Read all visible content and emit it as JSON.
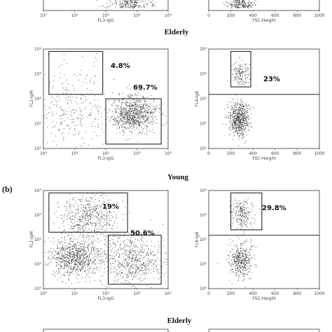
{
  "panel_letter": "(b)",
  "group_labels": {
    "elderly_a": "Elderly",
    "young_b": "Young",
    "elderly_b": "Elderly"
  },
  "axes": {
    "x_igg": "FL3-IgG",
    "y_igm": "FL2-IgM",
    "x_fsc": "FSC-Height",
    "y_iga": "FL4-IgA",
    "log_ticks": [
      "10⁰",
      "10¹",
      "10²",
      "10³",
      "10⁴"
    ],
    "lin_ticks": [
      "0",
      "200",
      "400",
      "600",
      "800",
      "1000"
    ]
  },
  "chart_data": [
    {
      "id": "top-left-partial",
      "type": "scatter",
      "xlabel": "FL3-IgG",
      "xscale": "log",
      "xlim": [
        1,
        10000
      ],
      "gates": []
    },
    {
      "id": "top-right-partial",
      "type": "scatter",
      "xlabel": "FSC-Height",
      "xlim": [
        0,
        1000
      ],
      "gates": []
    },
    {
      "id": "elderly-a-igm-igg",
      "group": "Elderly",
      "type": "scatter",
      "xlabel": "FL3-IgG",
      "ylabel": "FL2-IgM",
      "xscale": "log",
      "yscale": "log",
      "xlim": [
        1,
        10000
      ],
      "ylim": [
        1,
        10000
      ],
      "gates": [
        {
          "label": "4.8%",
          "x": [
            1.5,
            80
          ],
          "y": [
            150,
            8000
          ]
        },
        {
          "label": "69.7%",
          "x": [
            100,
            6000
          ],
          "y": [
            1.5,
            100
          ]
        }
      ],
      "clusters": [
        {
          "x_center": 800,
          "y_center": 25,
          "spread": 0.35,
          "n": 900
        },
        {
          "x_center": 8,
          "y_center": 25,
          "spread": 0.6,
          "n": 250
        },
        {
          "x_center": 8,
          "y_center": 900,
          "spread": 0.6,
          "n": 60
        }
      ]
    },
    {
      "id": "elderly-a-iga-fsc",
      "group": "Elderly",
      "type": "scatter",
      "xlabel": "FSC-Height",
      "ylabel": "FL4-IgA",
      "xlim": [
        0,
        1000
      ],
      "yscale": "log",
      "ylim": [
        1,
        10000
      ],
      "gates": [
        {
          "label": "23%",
          "x": [
            200,
            380
          ],
          "y": [
            300,
            8000
          ]
        }
      ],
      "divider_y": 150,
      "clusters": [
        {
          "x_center": 280,
          "y_center": 1000,
          "spread": 0.25,
          "sx": 40,
          "n": 160
        },
        {
          "x_center": 270,
          "y_center": 15,
          "spread": 0.35,
          "sx": 45,
          "n": 650
        }
      ]
    },
    {
      "id": "young-b-igm-igg",
      "group": "Young",
      "type": "scatter",
      "xlabel": "FL3-IgG",
      "ylabel": "FL2-IgM",
      "xscale": "log",
      "yscale": "log",
      "xlim": [
        1,
        10000
      ],
      "ylim": [
        1,
        10000
      ],
      "gates": [
        {
          "label": "19%",
          "x": [
            1.5,
            500
          ],
          "y": [
            200,
            8000
          ]
        },
        {
          "label": "50.6%",
          "x": [
            120,
            6000
          ],
          "y": [
            1.5,
            150
          ]
        }
      ],
      "clusters": [
        {
          "x_center": 10,
          "y_center": 20,
          "spread": 0.4,
          "n": 900
        },
        {
          "x_center": 30,
          "y_center": 900,
          "spread": 0.45,
          "n": 550
        },
        {
          "x_center": 700,
          "y_center": 15,
          "spread": 0.5,
          "n": 700
        }
      ]
    },
    {
      "id": "young-b-iga-fsc",
      "group": "Young",
      "type": "scatter",
      "xlabel": "FSC-Height",
      "ylabel": "FL4-IgA",
      "xlim": [
        0,
        1000
      ],
      "yscale": "log",
      "ylim": [
        1,
        10000
      ],
      "gates": [
        {
          "label": "29.8%",
          "x": [
            200,
            480
          ],
          "y": [
            250,
            8000
          ]
        }
      ],
      "divider_y": 150,
      "clusters": [
        {
          "x_center": 300,
          "y_center": 1100,
          "spread": 0.3,
          "sx": 50,
          "n": 220
        },
        {
          "x_center": 290,
          "y_center": 15,
          "spread": 0.35,
          "sx": 50,
          "n": 450
        }
      ]
    }
  ]
}
